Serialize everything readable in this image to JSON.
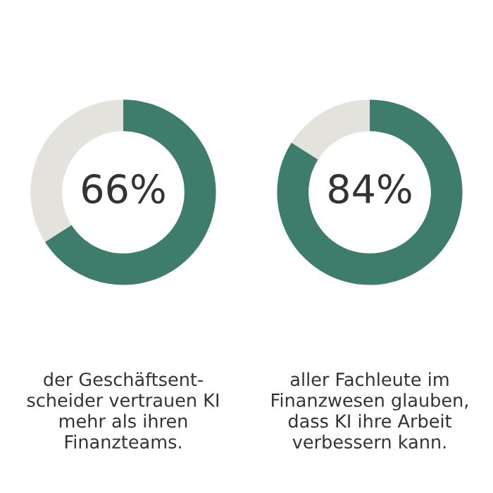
{
  "chart_data": [
    {
      "type": "donut",
      "categories": [
        null,
        null
      ],
      "values": [
        66,
        34
      ],
      "colors": [
        "#3e7d6c",
        "#e4e2dd"
      ],
      "value_labels": [
        "66%",
        null
      ],
      "annotations": [
        "der Geschäftsent-\nscheider vertrauen KI\nmehr als ihren\nFinanzteams."
      ]
    },
    {
      "type": "donut",
      "categories": [
        null,
        null
      ],
      "values": [
        84,
        16
      ],
      "colors": [
        "#3e7d6c",
        "#e4e2dd"
      ],
      "value_labels": [
        "84%",
        null
      ],
      "annotations": [
        "aller Fachleute im\nFinanzwesen glauben,\ndass KI ihre Arbeit\nverbessern kann."
      ]
    }
  ]
}
